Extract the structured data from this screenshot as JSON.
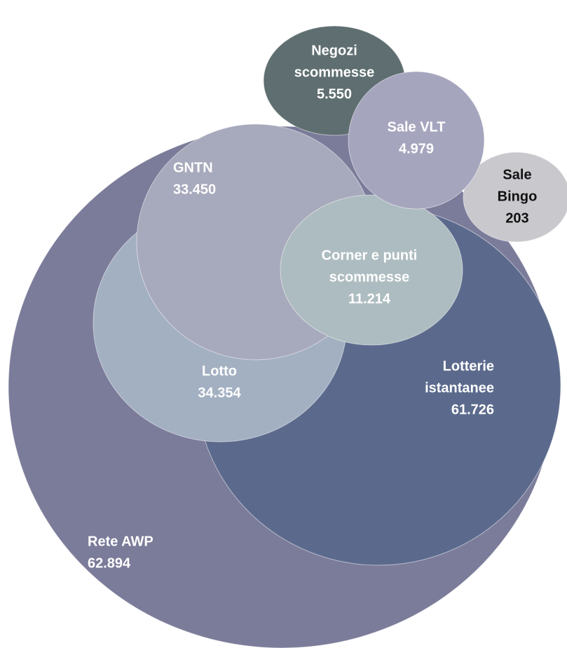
{
  "nodes": [
    {
      "label": [
        "Rete AWP"
      ],
      "value": "62.894"
    },
    {
      "label": [
        "Negozi",
        "scommesse"
      ],
      "value": "5.550"
    },
    {
      "label": [
        "Lotterie",
        "istantanee"
      ],
      "value": "61.726"
    },
    {
      "label": [
        "Lotto"
      ],
      "value": "34.354"
    },
    {
      "label": [
        "GNTN"
      ],
      "value": "33.450"
    },
    {
      "label": [
        "Corner e punti",
        "scommesse"
      ],
      "value": "11.214"
    },
    {
      "label": [
        "Sale",
        "Bingo"
      ],
      "value": "203"
    },
    {
      "label": [
        "Sale VLT"
      ],
      "value": "4.979"
    }
  ]
}
